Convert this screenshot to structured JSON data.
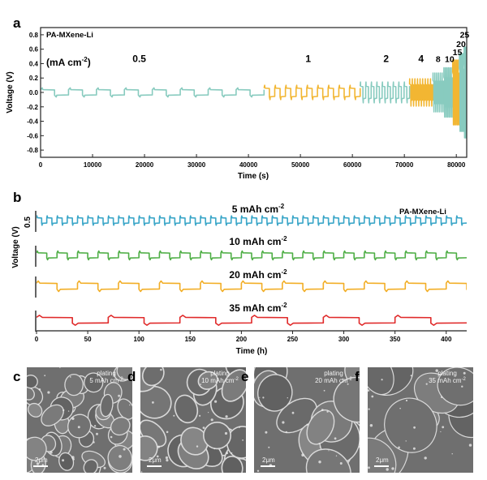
{
  "panels": {
    "a": "a",
    "b": "b",
    "c": "c",
    "d": "d",
    "e": "e",
    "f": "f"
  },
  "chart_data": [
    {
      "type": "line",
      "panel": "a",
      "legend_text": "PA-MXene-Li",
      "xlabel": "Time (s)",
      "ylabel": "Voltage (V)",
      "xlim": [
        0,
        82000
      ],
      "ylim": [
        -0.9,
        0.9
      ],
      "xticks": [
        0,
        10000,
        20000,
        30000,
        40000,
        50000,
        60000,
        70000,
        80000
      ],
      "xtick_labels": [
        "0",
        "10000",
        "20000",
        "30000",
        "40000",
        "50000",
        "60000",
        "70000",
        "80000"
      ],
      "yticks": [
        0.8,
        0.6,
        0.4,
        0.2,
        0.0,
        -0.2,
        -0.4,
        -0.6,
        -0.8
      ],
      "ytick_labels": [
        "0.8",
        "0.6",
        "0.4",
        "0.2",
        "0.0",
        "-0.2",
        "-0.4",
        "-0.6",
        "-0.8"
      ],
      "unit_label": "(mA cm",
      "unit_sup": "-2",
      "unit_close": ")",
      "colors": {
        "teal": "#88cbbf",
        "orange": "#f2b632"
      },
      "segments": [
        {
          "label": "0.5",
          "current_density": 0.5,
          "t_start": 0,
          "t_end": 43000,
          "cycles": 8,
          "amplitude": 0.07,
          "color": "#88cbbf",
          "label_x": 19000,
          "label_y": 0.42
        },
        {
          "label": "1",
          "current_density": 1,
          "t_start": 43000,
          "t_end": 61500,
          "cycles": 9,
          "amplitude": 0.11,
          "color": "#f2b632",
          "label_x": 51500,
          "label_y": 0.42
        },
        {
          "label": "2",
          "current_density": 2,
          "t_start": 61500,
          "t_end": 71000,
          "cycles": 9,
          "amplitude": 0.16,
          "color": "#88cbbf",
          "label_x": 66500,
          "label_y": 0.42
        },
        {
          "label": "4",
          "current_density": 4,
          "t_start": 71000,
          "t_end": 75500,
          "cycles": 9,
          "amplitude": 0.21,
          "color": "#f2b632",
          "label_x": 73200,
          "label_y": 0.42
        },
        {
          "label": "8",
          "current_density": 8,
          "t_start": 75500,
          "t_end": 77600,
          "cycles": 6,
          "amplitude": 0.3,
          "color": "#88cbbf",
          "label_x": 76500,
          "label_y": 0.42
        },
        {
          "label": "10",
          "current_density": 10,
          "t_start": 77600,
          "t_end": 79300,
          "cycles": 6,
          "amplitude": 0.38,
          "color": "#88cbbf",
          "label_x": 78700,
          "label_y": 0.42
        },
        {
          "label": "15",
          "current_density": 15,
          "t_start": 79300,
          "t_end": 80600,
          "cycles": 5,
          "amplitude": 0.5,
          "color": "#f2b632",
          "label_x": 80200,
          "label_y": 0.52
        },
        {
          "label": "20",
          "current_density": 20,
          "t_start": 80600,
          "t_end": 81500,
          "cycles": 4,
          "amplitude": 0.6,
          "color": "#88cbbf",
          "label_x": 80900,
          "label_y": 0.63
        },
        {
          "label": "25",
          "current_density": 25,
          "t_start": 81500,
          "t_end": 82000,
          "cycles": 3,
          "amplitude": 0.7,
          "color": "#88cbbf",
          "label_x": 81600,
          "label_y": 0.76
        }
      ]
    },
    {
      "type": "line",
      "panel": "b",
      "legend_text": "PA-MXene-Li",
      "xlabel": "Time (h)",
      "ylabel": "Voltage (V)",
      "xlim": [
        0,
        420
      ],
      "xticks": [
        0,
        50,
        100,
        150,
        200,
        250,
        300,
        350,
        400
      ],
      "xtick_labels": [
        "0",
        "50",
        "100",
        "150",
        "200",
        "250",
        "300",
        "350",
        "400"
      ],
      "scale_bar_label": "0.5",
      "series": [
        {
          "name": "5 mAh cm",
          "name_sup": "-2",
          "capacity": 5,
          "color": "#3aa6c8",
          "period_h": 10,
          "amplitude_px": 3.4
        },
        {
          "name": "10 mAh cm",
          "name_sup": "-2",
          "capacity": 10,
          "color": "#4eae45",
          "period_h": 20,
          "amplitude_px": 3.2
        },
        {
          "name": "20 mAh cm",
          "name_sup": "-2",
          "capacity": 20,
          "color": "#f2ae26",
          "period_h": 40,
          "amplitude_px": 3.8
        },
        {
          "name": "35 mAh cm",
          "name_sup": "-2",
          "capacity": 35,
          "color": "#e02a2a",
          "period_h": 70,
          "amplitude_px": 3.6
        }
      ]
    }
  ],
  "sem_images": [
    {
      "panel": "c",
      "line1": "plating",
      "line2": "5 mAh cm",
      "sup": "-2",
      "scale": "2μm"
    },
    {
      "panel": "d",
      "line1": "plating",
      "line2": "10 mAh cm",
      "sup": "-2",
      "scale": "2μm"
    },
    {
      "panel": "e",
      "line1": "plating",
      "line2": "20 mAh cm",
      "sup": "-2",
      "scale": "2μm"
    },
    {
      "panel": "f",
      "line1": "plating",
      "line2": "35 mAh cm",
      "sup": "-2",
      "scale": "2μm"
    }
  ]
}
